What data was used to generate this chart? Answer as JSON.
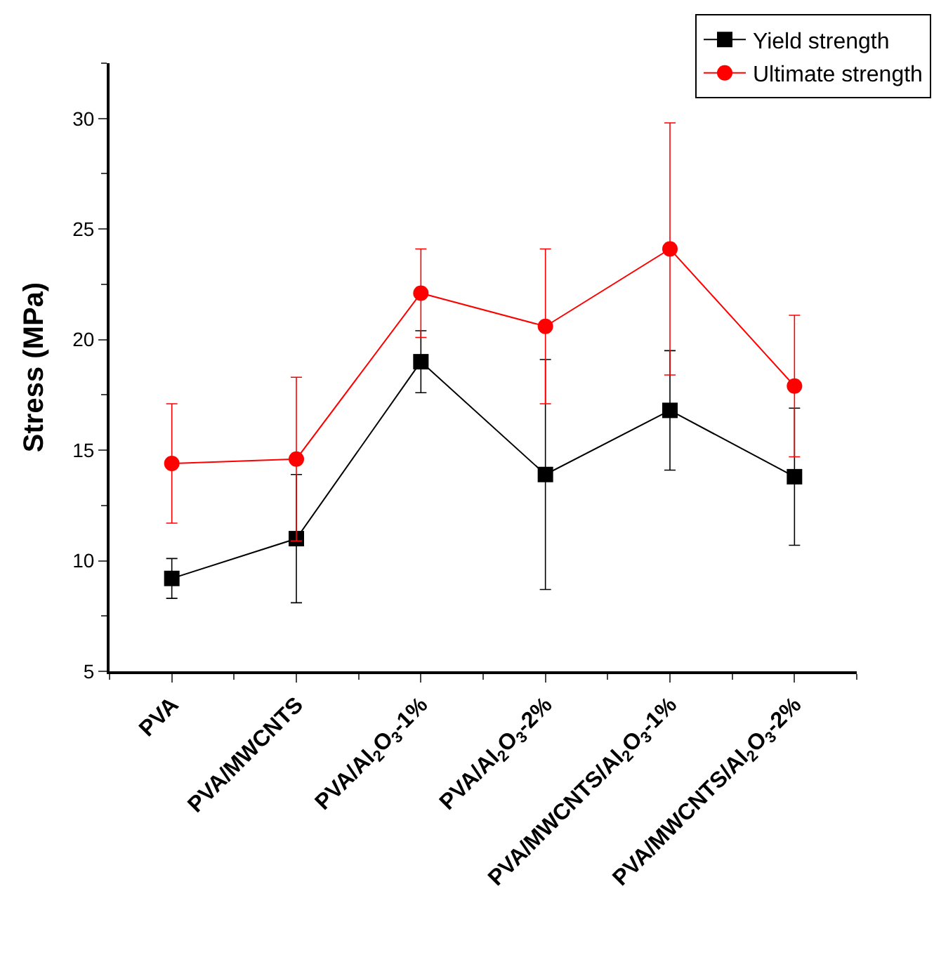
{
  "chart_data": {
    "type": "line",
    "ylabel": "Stress (MPa)",
    "categories": [
      "PVA",
      "PVA/MWCNTS",
      "PVA/Al$_{2}$O$_{3}$-1%",
      "PVA/Al$_{2}$O$_{3}$-2%",
      "PVA/MWCNTS/Al$_{2}$O$_{3}$-1%",
      "PVA/MWCNTS/Al$_{2}$O$_{3}$-2%"
    ],
    "series": [
      {
        "name": "Yield strength",
        "color": "#000000",
        "marker": "square",
        "values": [
          9.2,
          11.0,
          19.0,
          13.9,
          16.8,
          13.8
        ],
        "errors": [
          0.9,
          2.9,
          1.4,
          5.2,
          2.7,
          3.1
        ]
      },
      {
        "name": "Ultimate strength",
        "color": "#ff0000",
        "marker": "circle",
        "values": [
          14.4,
          14.6,
          22.1,
          20.6,
          24.1,
          17.9
        ],
        "errors": [
          2.7,
          3.7,
          2.0,
          3.5,
          5.7,
          3.2
        ]
      }
    ],
    "ylim": [
      5,
      32.5
    ],
    "yticks": [
      5,
      10,
      15,
      20,
      25,
      30
    ],
    "legend": "top right",
    "line_style": "solid"
  }
}
